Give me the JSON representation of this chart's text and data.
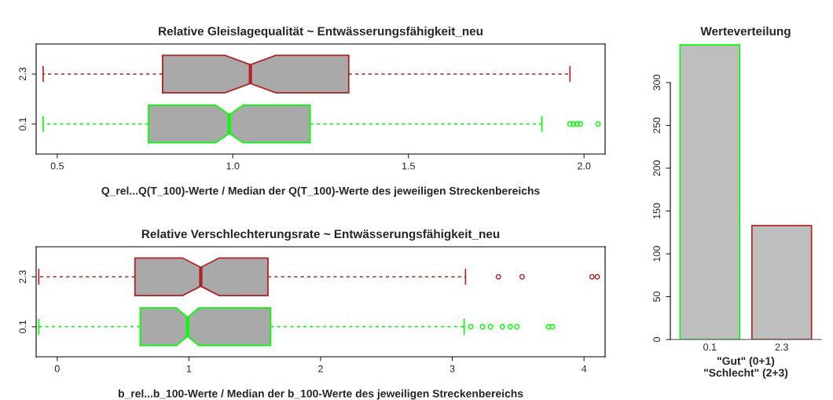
{
  "chart_data": [
    {
      "type": "box",
      "orientation": "horizontal",
      "title": "Relative Gleislagequalität ~ Entwässerungsfähigkeit_neu",
      "xlabel": "Q_rel...Q(T_100)-Werte / Median der Q(T_100)-Werte des jeweiligen Streckenbereichs",
      "categories": [
        "2.3",
        "0.1"
      ],
      "colors": [
        "#b22222",
        "#00ff00"
      ],
      "boxes": [
        {
          "low": 0.46,
          "q1": 0.8,
          "median": 1.05,
          "q3": 1.33,
          "high": 1.96
        },
        {
          "low": 0.46,
          "q1": 0.76,
          "median": 0.99,
          "q3": 1.22,
          "high": 1.88,
          "outliers": [
            1.96,
            1.97,
            1.98,
            1.99,
            2.04
          ]
        }
      ],
      "xlim": [
        0.44,
        2.06
      ],
      "xticks": [
        {
          "value": 0.5,
          "label": "0.5"
        },
        {
          "value": 1,
          "label": "1.0"
        },
        {
          "value": 1.5,
          "label": "1.5"
        },
        {
          "value": 2,
          "label": "2.0"
        }
      ],
      "grid": false
    },
    {
      "type": "box",
      "orientation": "horizontal",
      "title": "Relative Verschlechterungsrate ~ Entwässerungsfähigkeit_neu",
      "xlabel": "b_rel...b_100-Werte / Median der b_100-Werte des jeweiligen Streckenbereichs",
      "categories": [
        "2.3",
        "0.1"
      ],
      "colors": [
        "#b22222",
        "#00ff00"
      ],
      "boxes": [
        {
          "low": -0.14,
          "q1": 0.59,
          "median": 1.09,
          "q3": 1.6,
          "high": 3.1,
          "outliers": [
            3.35,
            3.53,
            4.06,
            4.1
          ]
        },
        {
          "low": -0.14,
          "q1": 0.63,
          "median": 0.99,
          "q3": 1.62,
          "high": 3.09,
          "outliers": [
            3.14,
            3.23,
            3.29,
            3.38,
            3.44,
            3.49,
            3.73,
            3.76
          ]
        }
      ],
      "xlim": [
        -0.16,
        4.16
      ],
      "xticks": [
        0,
        1,
        2,
        3,
        4
      ],
      "grid": false
    },
    {
      "type": "bar",
      "title": "Werteverteilung",
      "xlabel": "\"Gut\" (0+1)\n\"Schlecht\" (2+3)",
      "categories": [
        "0.1",
        "2.3"
      ],
      "values": [
        344,
        133
      ],
      "colors": [
        "#00ff00",
        "#b22222"
      ],
      "ylim": [
        0,
        345
      ],
      "yticks": [
        0,
        50,
        100,
        150,
        200,
        250,
        300
      ],
      "grid": false
    }
  ]
}
